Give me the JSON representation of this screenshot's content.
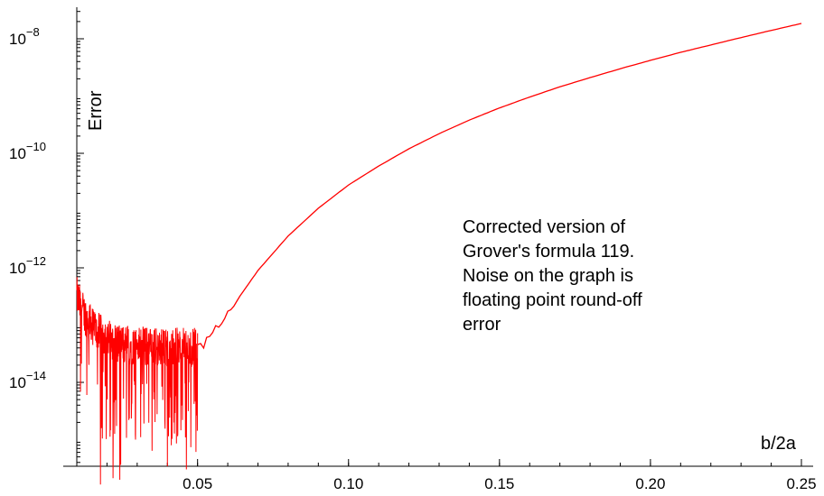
{
  "chart_data": {
    "type": "line",
    "xlabel": "b/2a",
    "ylabel": "Error",
    "y_scale": "log",
    "xlim": [
      0.01,
      0.25
    ],
    "ylim": [
      1e-16,
      1e-07
    ],
    "x_ticks": [
      0.05,
      0.1,
      0.15,
      0.2,
      0.25
    ],
    "x_tick_labels": [
      "0.05",
      "0.10",
      "0.15",
      "0.20",
      "0.25"
    ],
    "y_ticks": [
      1e-14,
      1e-12,
      1e-10,
      1e-08
    ],
    "y_tick_labels": [
      {
        "base": "10",
        "exp": "−14"
      },
      {
        "base": "10",
        "exp": "−12"
      },
      {
        "base": "10",
        "exp": "−10"
      },
      {
        "base": "10",
        "exp": "−8"
      }
    ],
    "annotation": [
      "Corrected version of",
      "Grover's formula 119.",
      "Noise on the graph is",
      "floating point round-off",
      "error"
    ],
    "series": [
      {
        "color": "#ff0000",
        "smooth": {
          "x": [
            0.05,
            0.06,
            0.07,
            0.08,
            0.09,
            0.1,
            0.11,
            0.12,
            0.13,
            0.14,
            0.15,
            0.16,
            0.17,
            0.18,
            0.19,
            0.2,
            0.21,
            0.22,
            0.23,
            0.24,
            0.25
          ],
          "y": [
            3.5e-14,
            1.6e-13,
            9e-13,
            3.6e-12,
            1.1e-11,
            2.8e-11,
            6e-11,
            1.2e-10,
            2.2e-10,
            3.8e-10,
            6.2e-10,
            9.6e-10,
            1.45e-09,
            2.1e-09,
            3e-09,
            4.2e-09,
            5.8e-09,
            7.8e-09,
            1.05e-08,
            1.4e-08,
            1.85e-08
          ]
        },
        "noise_region": {
          "x_range": [
            0.01,
            0.05
          ],
          "typical_level": 4e-14,
          "lower_spikes_to": 1.5e-16
        }
      }
    ]
  }
}
